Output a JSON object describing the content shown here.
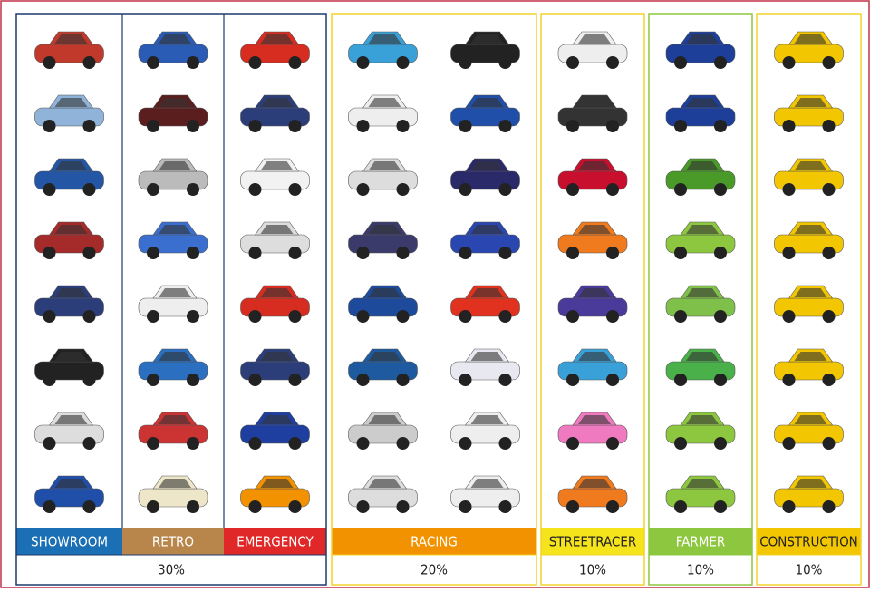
{
  "groups": [
    {
      "columns": [
        "SHOWROOM",
        "RETRO",
        "EMERGENCY"
      ],
      "share": "30%"
    },
    {
      "columns": [
        "RACING"
      ],
      "share": "20%"
    },
    {
      "columns": [
        "STREETRACER"
      ],
      "share": "10%"
    },
    {
      "columns": [
        "FARMER"
      ],
      "share": "10%"
    },
    {
      "columns": [
        "CONSTRUCTION"
      ],
      "share": "10%"
    }
  ]
}
